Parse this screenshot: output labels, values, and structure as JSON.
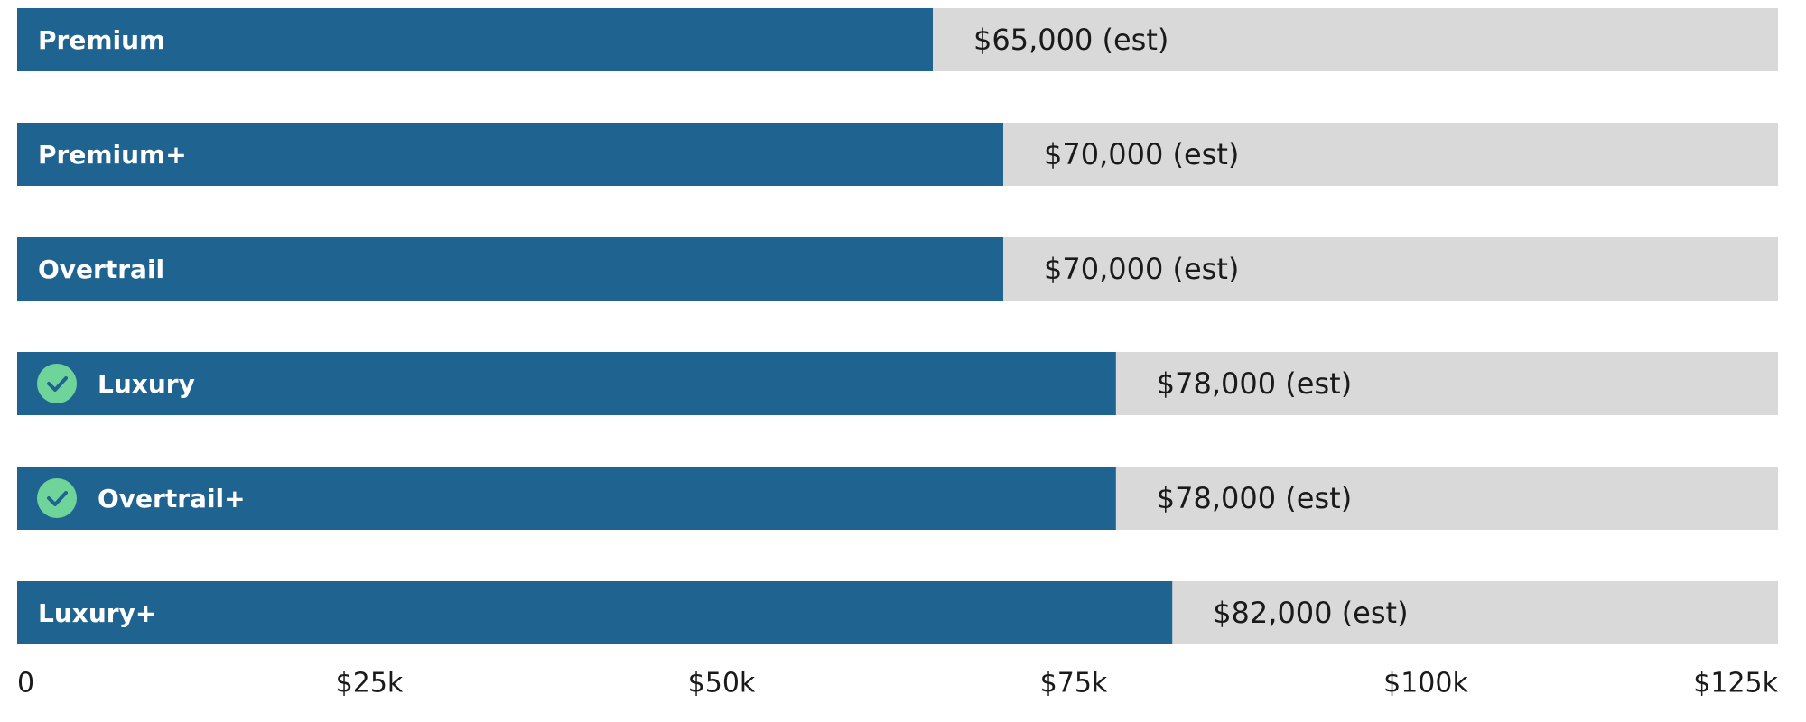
{
  "chart_data": {
    "type": "barh",
    "categories": [
      "Premium",
      "Premium+",
      "Overtrail",
      "Luxury",
      "Overtrail+",
      "Luxury+"
    ],
    "values": [
      65000,
      70000,
      70000,
      78000,
      78000,
      82000
    ],
    "value_labels": [
      "$65,000 (est)",
      "$70,000 (est)",
      "$70,000 (est)",
      "$78,000 (est)",
      "$78,000 (est)",
      "$82,000 (est)"
    ],
    "checked": [
      false,
      false,
      false,
      true,
      true,
      false
    ],
    "color": "#1f6391",
    "track_color": "#d9d9d9",
    "check_color": "#6fd49a",
    "xlim": [
      0,
      125000
    ],
    "xticks": [
      0,
      {
        "value": 25000,
        "label": "$25k"
      },
      {
        "value": 50000,
        "label": "$50k"
      },
      {
        "value": 75000,
        "label": "$75k"
      },
      {
        "value": 100000,
        "label": "$100k"
      },
      {
        "value": 125000,
        "label": "$125k"
      }
    ]
  }
}
